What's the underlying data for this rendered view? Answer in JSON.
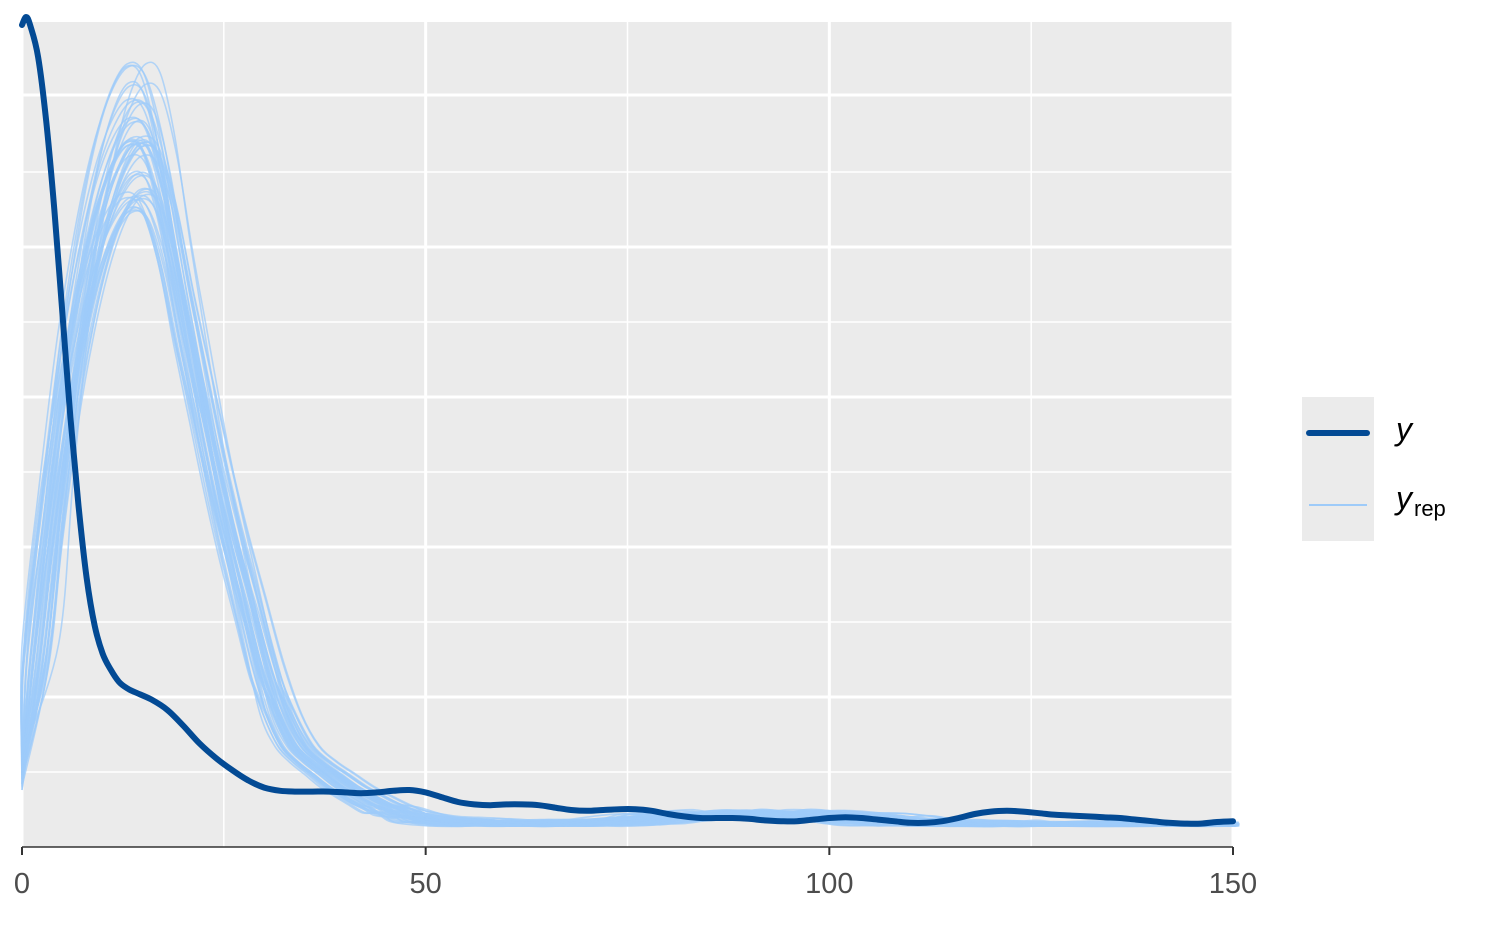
{
  "chart_data": {
    "type": "line",
    "title": "",
    "xlabel": "",
    "ylabel": "",
    "xlim": [
      0,
      150
    ],
    "x_ticks": [
      "0",
      "50",
      "100",
      "150"
    ],
    "y_ticks_shown": false,
    "grid": true,
    "legend_position": "right",
    "legend": {
      "y_label": "y",
      "yrep_label_main": "y",
      "yrep_label_sub": "rep"
    },
    "colors": {
      "y": "#034a94",
      "yrep": "#9ecbf9",
      "panel": "#ebebeb",
      "grid": "#ffffff"
    },
    "series": [
      {
        "name": "y",
        "x": [
          0,
          0.5,
          1,
          2,
          3,
          4,
          5,
          6,
          7,
          8,
          9,
          10,
          11,
          12,
          13,
          14,
          16,
          18,
          20,
          22,
          24,
          26,
          28,
          30,
          32,
          34,
          36,
          38,
          40,
          42,
          44,
          46,
          48,
          50,
          52,
          54,
          56,
          58,
          60,
          62,
          64,
          66,
          68,
          70,
          72,
          74,
          76,
          78,
          80,
          82,
          84,
          86,
          88,
          90,
          92,
          94,
          96,
          98,
          100,
          102,
          104,
          106,
          108,
          110,
          112,
          114,
          116,
          118,
          120,
          122,
          124,
          126,
          128,
          130,
          132,
          134,
          136,
          138,
          140,
          142,
          144,
          146,
          148,
          150
        ],
        "y": [
          1.0,
          1.01,
          1.0,
          0.96,
          0.88,
          0.77,
          0.64,
          0.51,
          0.4,
          0.31,
          0.25,
          0.215,
          0.195,
          0.18,
          0.172,
          0.167,
          0.158,
          0.145,
          0.125,
          0.103,
          0.085,
          0.07,
          0.057,
          0.048,
          0.044,
          0.043,
          0.043,
          0.043,
          0.042,
          0.041,
          0.042,
          0.044,
          0.045,
          0.042,
          0.036,
          0.03,
          0.027,
          0.026,
          0.027,
          0.027,
          0.026,
          0.023,
          0.02,
          0.019,
          0.02,
          0.021,
          0.021,
          0.019,
          0.015,
          0.012,
          0.01,
          0.01,
          0.01,
          0.009,
          0.007,
          0.006,
          0.006,
          0.008,
          0.01,
          0.011,
          0.01,
          0.008,
          0.006,
          0.004,
          0.004,
          0.006,
          0.01,
          0.015,
          0.018,
          0.019,
          0.018,
          0.016,
          0.014,
          0.013,
          0.012,
          0.011,
          0.01,
          0.008,
          0.006,
          0.004,
          0.003,
          0.003,
          0.005,
          0.006
        ]
      }
    ],
    "yrep_template": {
      "x": [
        0,
        2,
        4,
        6,
        8,
        10,
        12,
        14,
        16,
        18,
        20,
        22,
        24,
        26,
        28,
        30,
        32,
        34,
        36,
        38,
        40,
        42,
        44,
        46,
        48,
        50,
        55,
        60,
        65,
        70,
        75,
        80,
        85,
        90,
        95,
        100,
        105,
        110,
        115,
        120,
        130,
        140,
        150
      ],
      "y": [
        0.06,
        0.2,
        0.38,
        0.54,
        0.66,
        0.75,
        0.81,
        0.84,
        0.83,
        0.76,
        0.65,
        0.55,
        0.45,
        0.36,
        0.28,
        0.2,
        0.14,
        0.1,
        0.08,
        0.065,
        0.05,
        0.038,
        0.027,
        0.019,
        0.013,
        0.009,
        0.005,
        0.003,
        0.003,
        0.004,
        0.006,
        0.01,
        0.014,
        0.016,
        0.015,
        0.012,
        0.008,
        0.005,
        0.003,
        0.002,
        0.0015,
        0.001,
        0.0008
      ]
    },
    "yrep_draws": 50
  }
}
